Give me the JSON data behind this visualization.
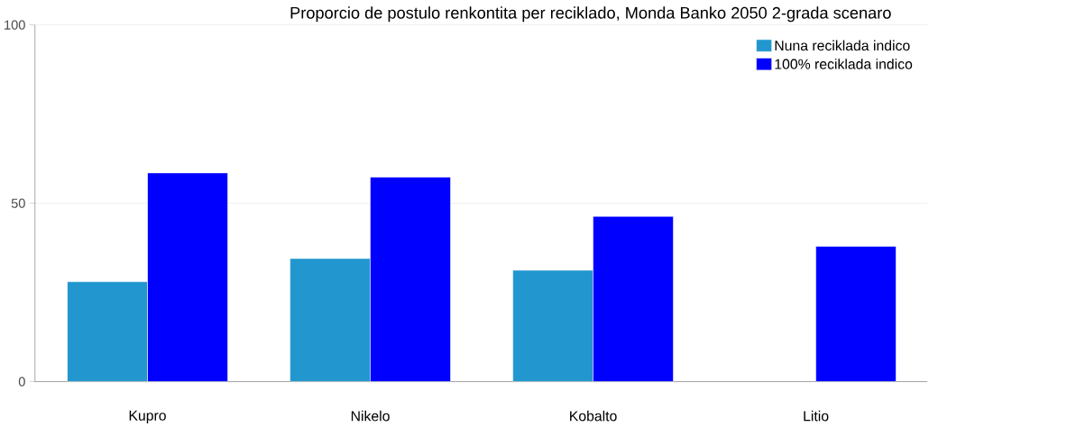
{
  "chart_data": {
    "type": "bar",
    "title": "Proporcio de postulo renkontita per reciklado, Monda Banko 2050 2-grada scenaro",
    "categories": [
      "Kupro",
      "Nikelo",
      "Kobalto",
      "Litio"
    ],
    "series": [
      {
        "name": "Nuna reciklada indico",
        "color": "#2196cf",
        "values": [
          28,
          34.5,
          31.2,
          null
        ]
      },
      {
        "name": "100% reciklada indico",
        "color": "#0000ff",
        "values": [
          58.5,
          57.3,
          46.3,
          37.9
        ]
      }
    ],
    "ylim": [
      0,
      100
    ],
    "yticks": [
      0,
      50,
      100
    ],
    "grid": "y",
    "legend": "top right"
  }
}
